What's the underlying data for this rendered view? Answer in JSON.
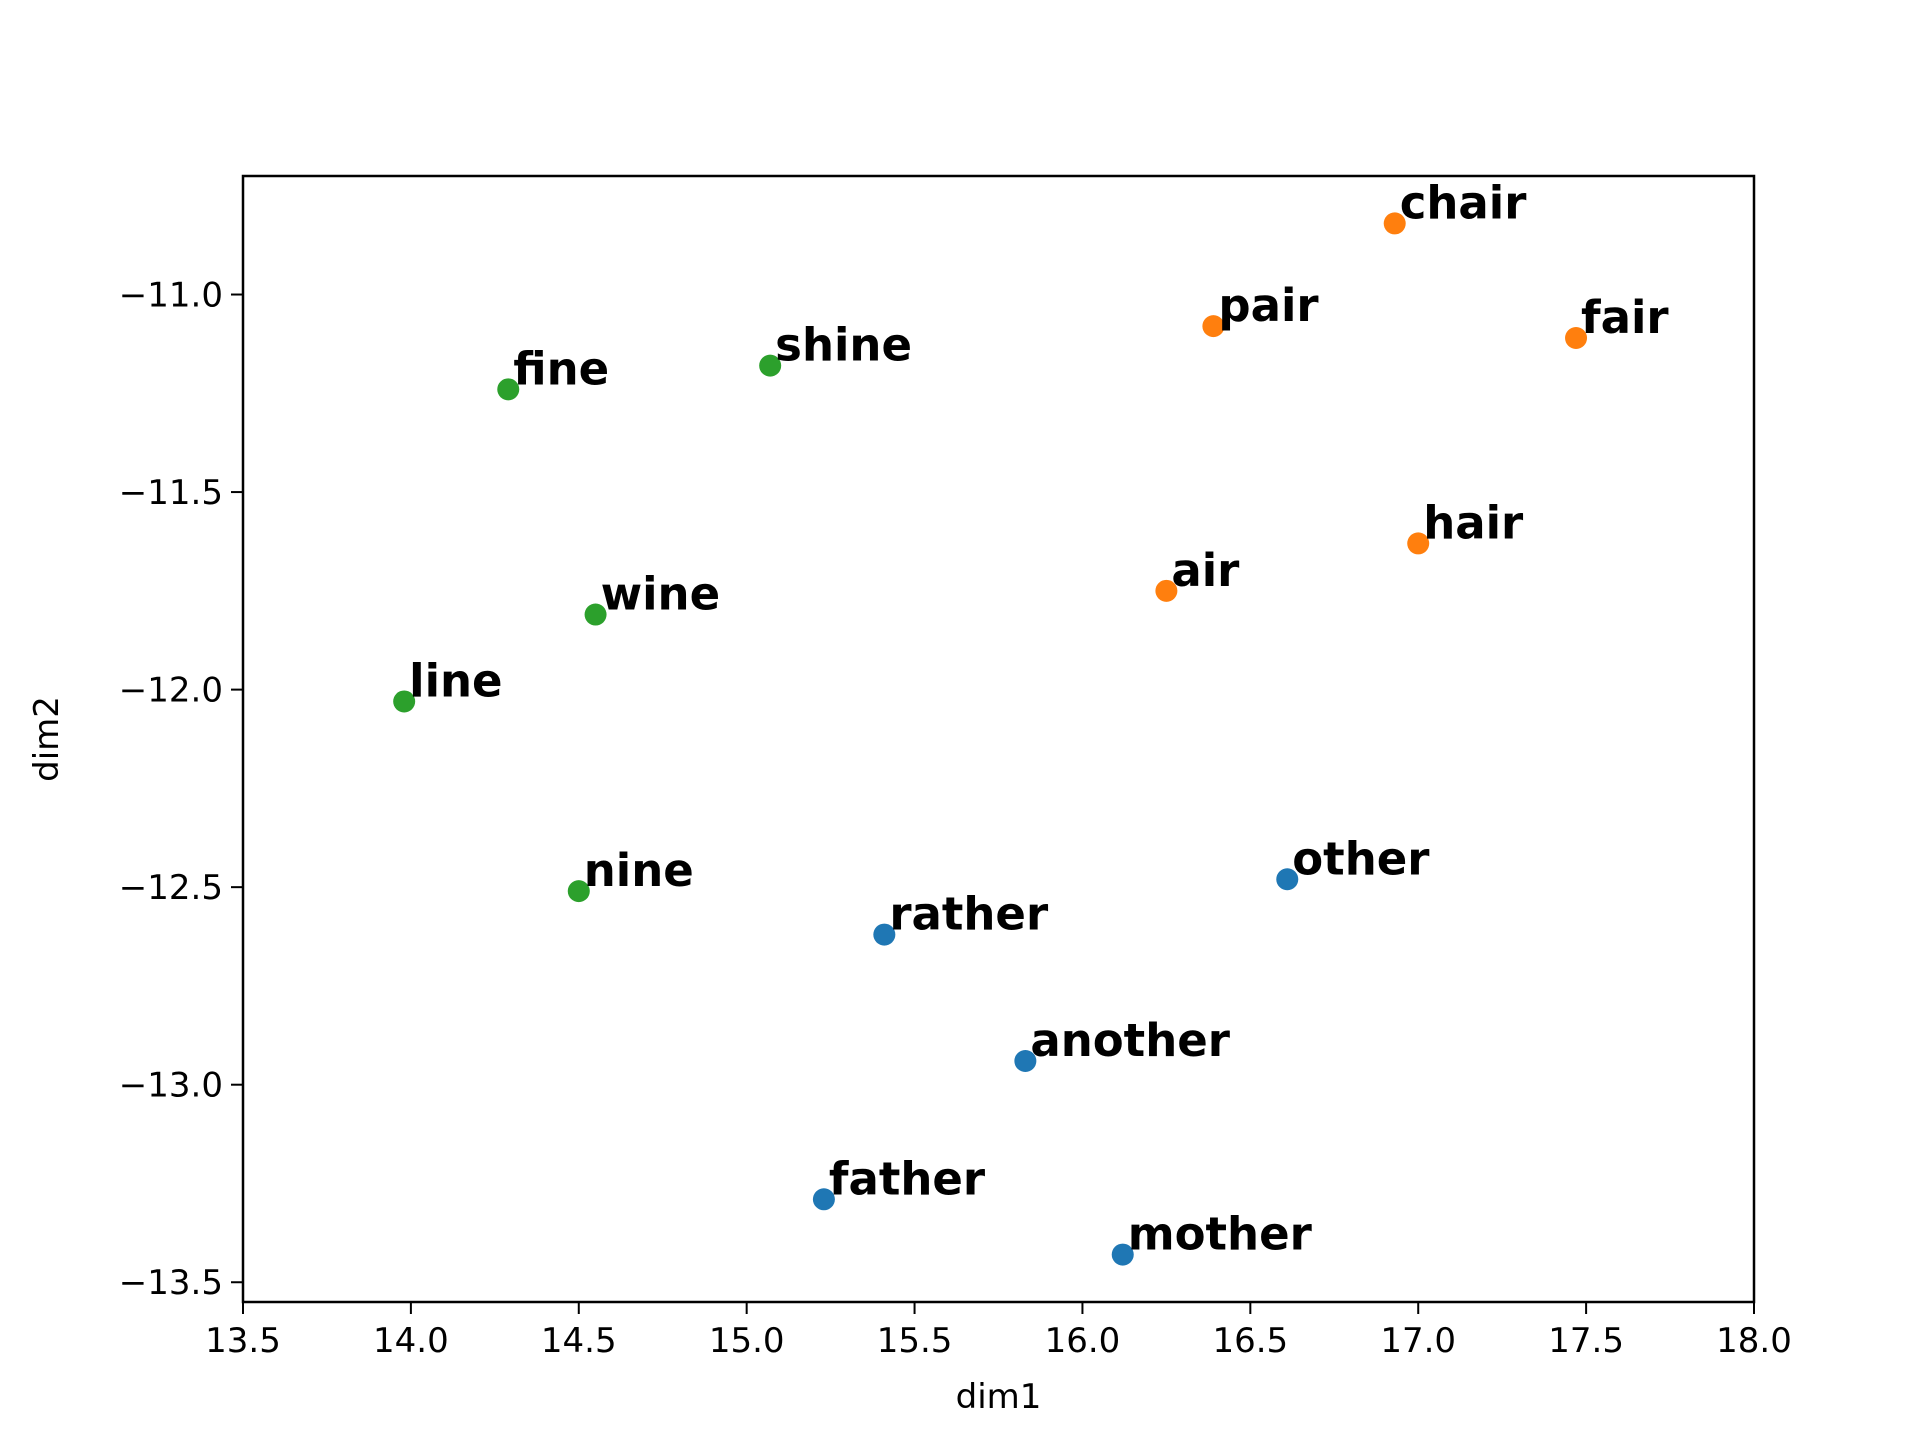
{
  "chart_data": {
    "type": "scatter",
    "title": "",
    "xlabel": "dim1",
    "ylabel": "dim2",
    "xlim": [
      13.5,
      18.0
    ],
    "ylim": [
      -13.55,
      -10.7
    ],
    "xticks": [
      "13.5",
      "14.0",
      "14.5",
      "15.0",
      "15.5",
      "16.0",
      "16.5",
      "17.0",
      "17.5",
      "18.0"
    ],
    "yticks": [
      "−11.0",
      "−11.5",
      "−12.0",
      "−12.5",
      "−13.0",
      "−13.5"
    ],
    "grid": false,
    "colors": {
      "blue": "#1f77b4",
      "orange": "#ff7f0e",
      "green": "#2ca02c"
    },
    "points": [
      {
        "label": "chair",
        "x": 16.93,
        "y": -10.82,
        "color": "orange"
      },
      {
        "label": "pair",
        "x": 16.39,
        "y": -11.08,
        "color": "orange"
      },
      {
        "label": "fair",
        "x": 17.47,
        "y": -11.11,
        "color": "orange"
      },
      {
        "label": "hair",
        "x": 17.0,
        "y": -11.63,
        "color": "orange"
      },
      {
        "label": "air",
        "x": 16.25,
        "y": -11.75,
        "color": "orange"
      },
      {
        "label": "fine",
        "x": 14.29,
        "y": -11.24,
        "color": "green"
      },
      {
        "label": "shine",
        "x": 15.07,
        "y": -11.18,
        "color": "green"
      },
      {
        "label": "wine",
        "x": 14.55,
        "y": -11.81,
        "color": "green"
      },
      {
        "label": "line",
        "x": 13.98,
        "y": -12.03,
        "color": "green"
      },
      {
        "label": "nine",
        "x": 14.5,
        "y": -12.51,
        "color": "green"
      },
      {
        "label": "other",
        "x": 16.61,
        "y": -12.48,
        "color": "blue"
      },
      {
        "label": "rather",
        "x": 15.41,
        "y": -12.62,
        "color": "blue"
      },
      {
        "label": "another",
        "x": 15.83,
        "y": -12.94,
        "color": "blue"
      },
      {
        "label": "father",
        "x": 15.23,
        "y": -13.29,
        "color": "blue"
      },
      {
        "label": "mother",
        "x": 16.12,
        "y": -13.43,
        "color": "blue"
      }
    ]
  }
}
